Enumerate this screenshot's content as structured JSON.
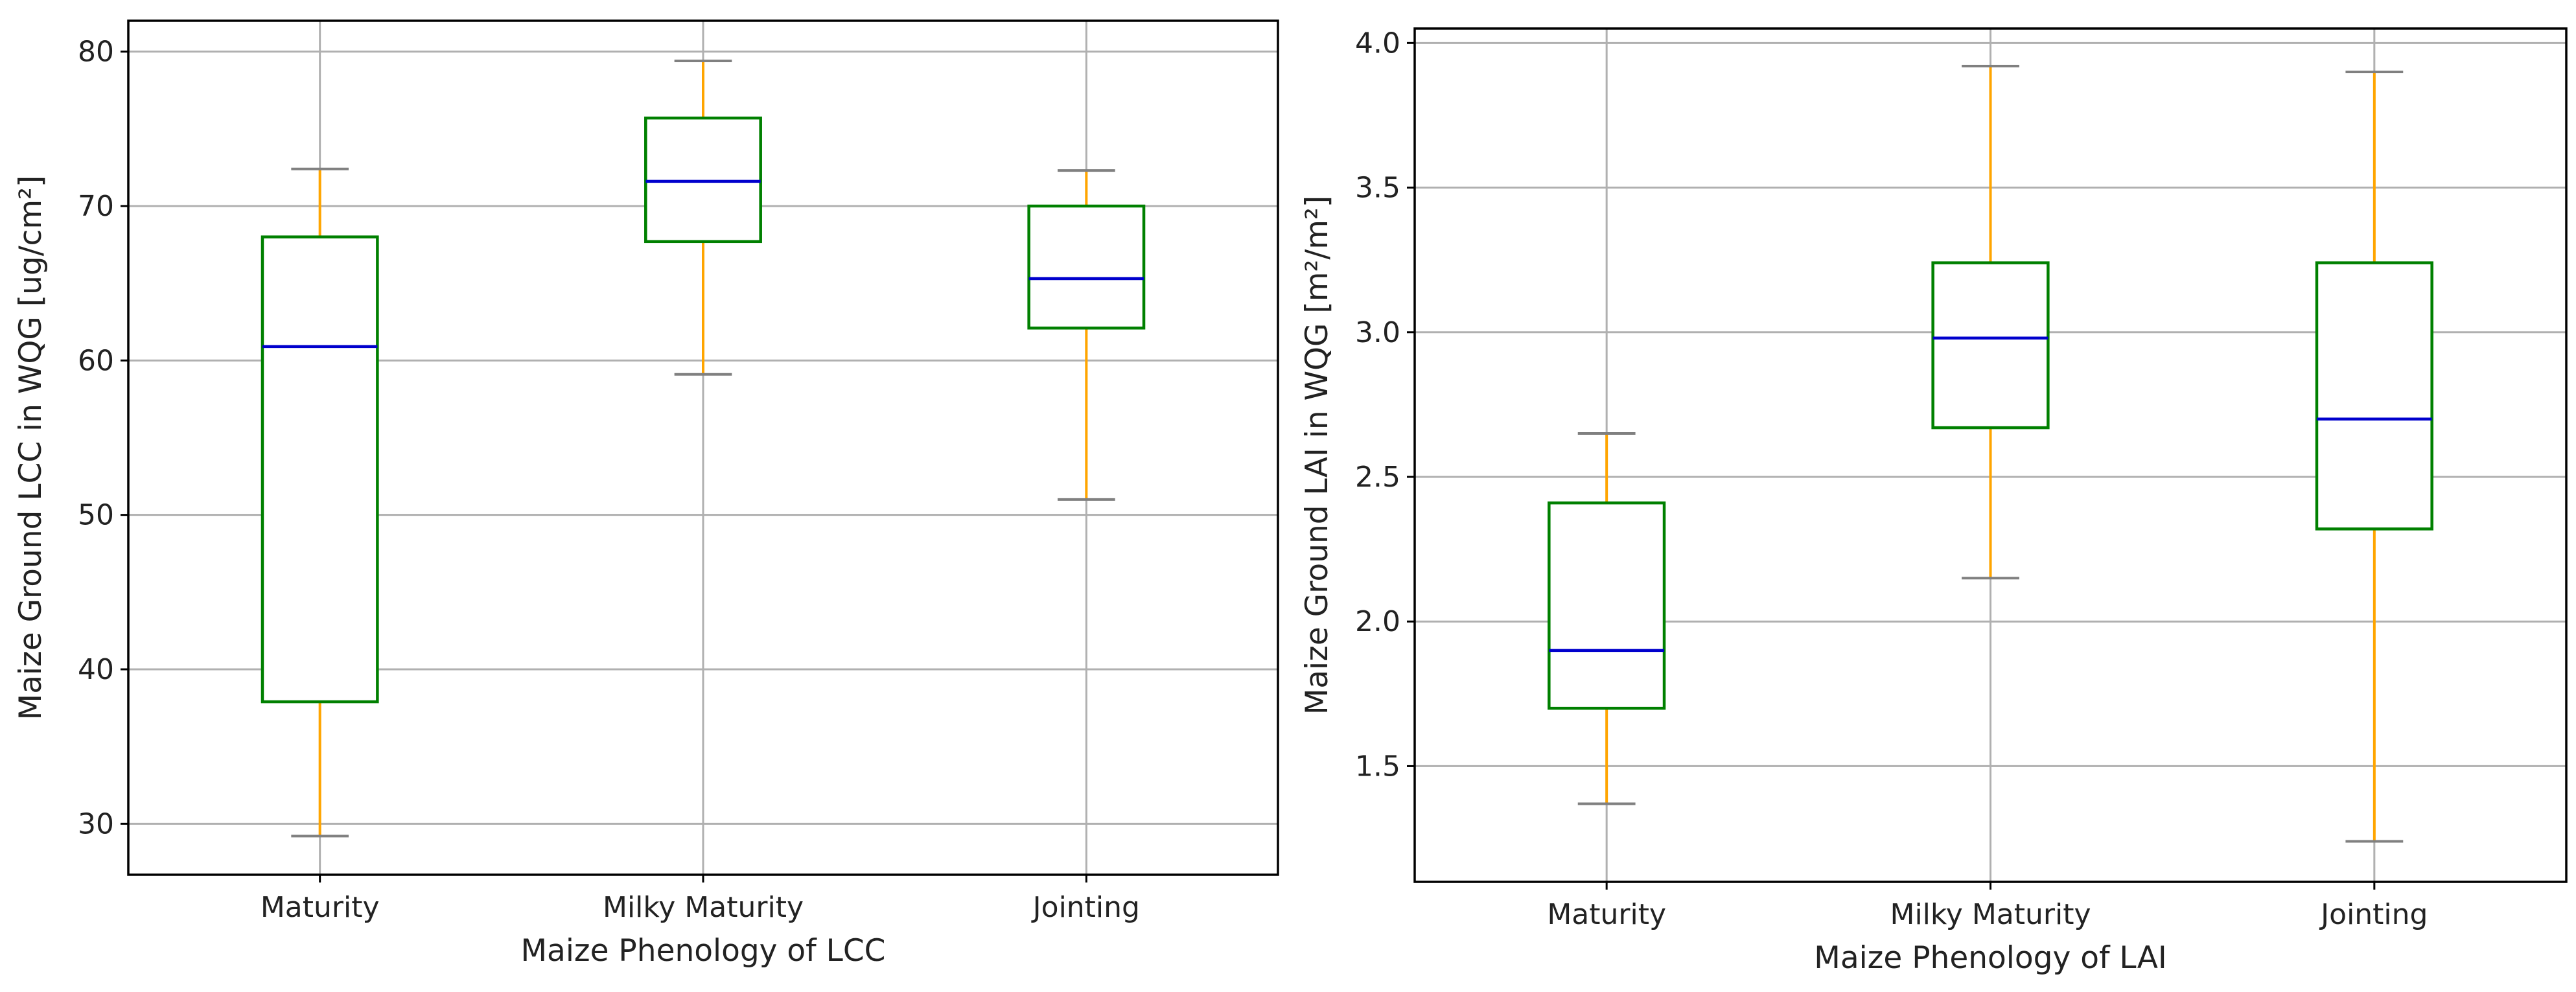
{
  "chart_data": [
    {
      "type": "box",
      "xlabel": "Maize Phenology of LCC",
      "ylabel": "Maize Ground LCC in WQG [ug/cm²]",
      "categories": [
        "Maturity",
        "Milky Maturity",
        "Jointing"
      ],
      "ylim": [
        26.7,
        82
      ],
      "yticks": [
        30,
        40,
        50,
        60,
        70,
        80
      ],
      "ytick_labels": [
        "30",
        "40",
        "50",
        "60",
        "70",
        "80"
      ],
      "grid": true,
      "boxes": [
        {
          "whisker_low": 29.2,
          "q1": 37.9,
          "median": 60.9,
          "q3": 68.0,
          "whisker_high": 72.4
        },
        {
          "whisker_low": 59.1,
          "q1": 67.7,
          "median": 71.6,
          "q3": 75.7,
          "whisker_high": 79.4
        },
        {
          "whisker_low": 51.0,
          "q1": 62.1,
          "median": 65.3,
          "q3": 70.0,
          "whisker_high": 72.3
        }
      ],
      "colors": {
        "box": "#008000",
        "median": "#0000cd",
        "whisker": "#ffa500",
        "cap": "#808080",
        "grid": "#b0b0b0"
      }
    },
    {
      "type": "box",
      "xlabel": "Maize Phenology of LAI",
      "ylabel": "Maize Ground LAI in WQG [m²/m²]",
      "categories": [
        "Maturity",
        "Milky Maturity",
        "Jointing"
      ],
      "ylim": [
        1.1,
        4.05
      ],
      "yticks": [
        1.5,
        2.0,
        2.5,
        3.0,
        3.5,
        4.0
      ],
      "ytick_labels": [
        "1.5",
        "2.0",
        "2.5",
        "3.0",
        "3.5",
        "4.0"
      ],
      "grid": true,
      "boxes": [
        {
          "whisker_low": 1.37,
          "q1": 1.7,
          "median": 1.9,
          "q3": 2.41,
          "whisker_high": 2.65
        },
        {
          "whisker_low": 2.15,
          "q1": 2.67,
          "median": 2.98,
          "q3": 3.24,
          "whisker_high": 3.92
        },
        {
          "whisker_low": 1.24,
          "q1": 2.32,
          "median": 2.7,
          "q3": 3.24,
          "whisker_high": 3.9
        }
      ],
      "colors": {
        "box": "#008000",
        "median": "#0000cd",
        "whisker": "#ffa500",
        "cap": "#808080",
        "grid": "#b0b0b0"
      }
    }
  ]
}
